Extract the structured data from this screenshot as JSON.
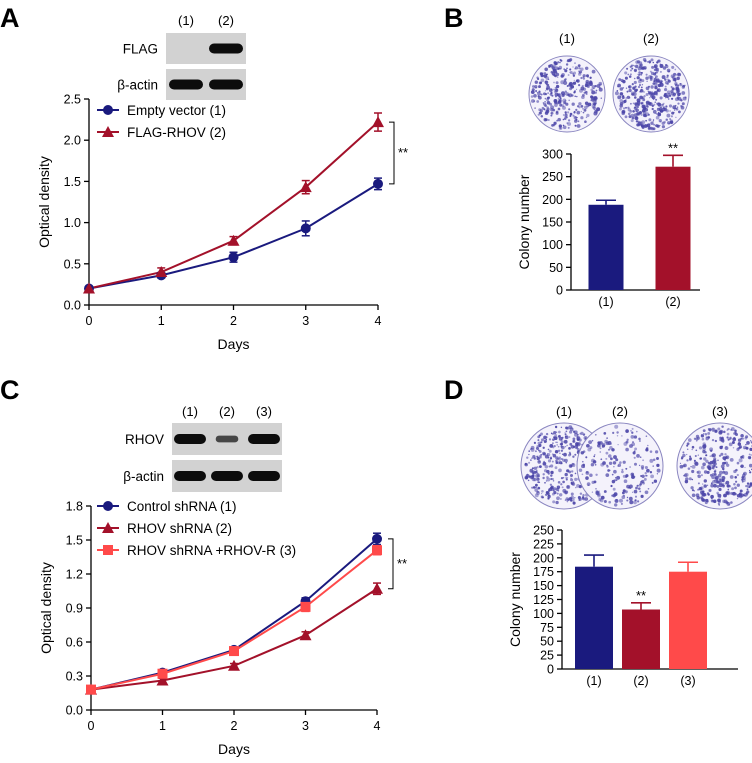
{
  "panels": {
    "a": {
      "letter": "A"
    },
    "b": {
      "letter": "B"
    },
    "c": {
      "letter": "C"
    },
    "d": {
      "letter": "D"
    }
  },
  "blot_a": {
    "lanes": [
      "(1)",
      "(2)"
    ],
    "rows": [
      {
        "label": "FLAG",
        "bands": [
          0.0,
          1.0
        ]
      },
      {
        "label": "β-actin",
        "bands": [
          1.0,
          1.0
        ]
      }
    ]
  },
  "blot_c": {
    "lanes": [
      "(1)",
      "(2)",
      "(3)"
    ],
    "rows": [
      {
        "label": "RHOV",
        "bands": [
          1.0,
          0.35,
          1.0
        ]
      },
      {
        "label": "β-actin",
        "bands": [
          1.0,
          1.0,
          1.0
        ]
      }
    ]
  },
  "dishes_b": {
    "labels": [
      "(1)",
      "(2)"
    ],
    "density": [
      0.7,
      0.9
    ]
  },
  "dishes_d": {
    "labels": [
      "(1)",
      "(2)",
      "(3)"
    ],
    "density": [
      0.85,
      0.35,
      0.75
    ]
  },
  "colors": {
    "navy": "#1a1a7e",
    "crimson": "#a3112a",
    "salmon": "#ff4a4a",
    "blot_bg": "#d2d2d2",
    "band": "#0c0c0c",
    "colony": "#4b45a8"
  },
  "chart_data": [
    {
      "id": "A",
      "type": "line",
      "xlabel": "Days",
      "ylabel": "Optical density",
      "x": [
        0,
        1,
        2,
        3,
        4
      ],
      "xticks": [
        "0",
        "1",
        "2",
        "3",
        "4"
      ],
      "ylim": [
        0.0,
        2.5
      ],
      "yticks": [
        "0.0",
        "0.5",
        "1.0",
        "1.5",
        "2.0",
        "2.5"
      ],
      "series": [
        {
          "name": "Empty vector (1)",
          "marker": "circle",
          "color": "#1a1a7e",
          "values": [
            0.2,
            0.36,
            0.58,
            0.93,
            1.47
          ],
          "errors": [
            0.02,
            0.03,
            0.06,
            0.09,
            0.07
          ]
        },
        {
          "name": "FLAG-RHOV (2)",
          "marker": "triangle",
          "color": "#a3112a",
          "values": [
            0.2,
            0.4,
            0.78,
            1.43,
            2.22
          ],
          "errors": [
            0.02,
            0.05,
            0.05,
            0.08,
            0.11
          ]
        }
      ],
      "significance": "**"
    },
    {
      "id": "B",
      "type": "bar",
      "ylabel": "Colony number",
      "categories": [
        "(1)",
        "(2)"
      ],
      "values": [
        188,
        272
      ],
      "errors": [
        10,
        25
      ],
      "colors": [
        "#1a1a7e",
        "#a3112a"
      ],
      "ylim": [
        0,
        300
      ],
      "yticks": [
        "0",
        "50",
        "100",
        "150",
        "200",
        "250",
        "300"
      ],
      "significance": [
        "",
        "**"
      ]
    },
    {
      "id": "C",
      "type": "line",
      "xlabel": "Days",
      "ylabel": "Optical density",
      "x": [
        0,
        1,
        2,
        3,
        4
      ],
      "xticks": [
        "0",
        "1",
        "2",
        "3",
        "4"
      ],
      "ylim": [
        0.0,
        1.8
      ],
      "yticks": [
        "0.0",
        "0.3",
        "0.6",
        "0.9",
        "1.2",
        "1.5",
        "1.8"
      ],
      "series": [
        {
          "name": "Control shRNA (1)",
          "marker": "circle",
          "color": "#1a1a7e",
          "values": [
            0.18,
            0.33,
            0.53,
            0.96,
            1.51
          ],
          "errors": [
            0.01,
            0.02,
            0.02,
            0.03,
            0.05
          ]
        },
        {
          "name": "RHOV shRNA (2)",
          "marker": "triangle",
          "color": "#a3112a",
          "values": [
            0.18,
            0.26,
            0.39,
            0.66,
            1.07
          ],
          "errors": [
            0.01,
            0.02,
            0.02,
            0.03,
            0.05
          ]
        },
        {
          "name": "RHOV shRNA +RHOV-R (3)",
          "marker": "square",
          "color": "#ff4a4a",
          "values": [
            0.18,
            0.32,
            0.52,
            0.91,
            1.41
          ],
          "errors": [
            0.01,
            0.02,
            0.02,
            0.04,
            0.04
          ]
        }
      ],
      "significance": "**"
    },
    {
      "id": "D",
      "type": "bar",
      "ylabel": "Colony number",
      "categories": [
        "(1)",
        "(2)",
        "(3)"
      ],
      "values": [
        184,
        107,
        175
      ],
      "errors": [
        21,
        12,
        17
      ],
      "colors": [
        "#1a1a7e",
        "#a3112a",
        "#ff4a4a"
      ],
      "ylim": [
        0,
        250
      ],
      "yticks": [
        "0",
        "25",
        "50",
        "75",
        "100",
        "125",
        "150",
        "175",
        "200",
        "225",
        "250"
      ],
      "significance": [
        "",
        "**",
        ""
      ]
    }
  ]
}
